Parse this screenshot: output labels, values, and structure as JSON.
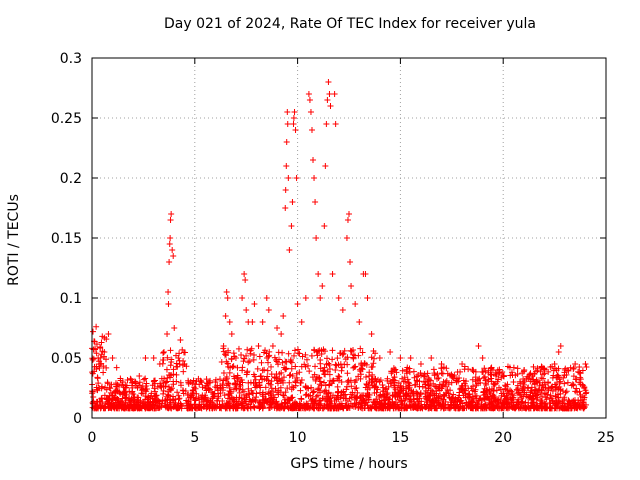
{
  "chart_data": {
    "type": "scatter",
    "title": "Day 021 of 2024, Rate Of TEC Index for receiver yula",
    "xlabel": "GPS time / hours",
    "ylabel": "ROTI / TECUs",
    "xlim": [
      0,
      25
    ],
    "ylim": [
      0,
      0.3
    ],
    "xticks": [
      0,
      5,
      10,
      15,
      20,
      25
    ],
    "yticks": [
      0,
      0.05,
      0.1,
      0.15,
      0.2,
      0.25,
      0.3
    ],
    "grid": true,
    "marker": "+",
    "color": "#ff0000",
    "series": [
      {
        "points": [
          [
            0.05,
            0.072
          ],
          [
            0.1,
            0.064
          ],
          [
            0.15,
            0.058
          ],
          [
            0.2,
            0.076
          ],
          [
            0.3,
            0.05
          ],
          [
            0.4,
            0.045
          ],
          [
            0.5,
            0.068
          ],
          [
            0.6,
            0.055
          ],
          [
            0.8,
            0.07
          ],
          [
            1.0,
            0.05
          ],
          [
            1.2,
            0.042
          ],
          [
            1.5,
            0.03
          ],
          [
            1.9,
            0.032
          ],
          [
            2.3,
            0.035
          ],
          [
            2.6,
            0.05
          ],
          [
            3.0,
            0.05
          ],
          [
            3.3,
            0.045
          ],
          [
            3.5,
            0.055
          ],
          [
            3.65,
            0.07
          ],
          [
            3.7,
            0.105
          ],
          [
            3.72,
            0.095
          ],
          [
            3.75,
            0.13
          ],
          [
            3.78,
            0.145
          ],
          [
            3.8,
            0.15
          ],
          [
            3.82,
            0.165
          ],
          [
            3.85,
            0.17
          ],
          [
            3.9,
            0.14
          ],
          [
            3.95,
            0.135
          ],
          [
            4.0,
            0.075
          ],
          [
            4.2,
            0.05
          ],
          [
            4.3,
            0.065
          ],
          [
            4.5,
            0.045
          ],
          [
            4.8,
            0.03
          ],
          [
            5.5,
            0.025
          ],
          [
            6.0,
            0.03
          ],
          [
            6.4,
            0.06
          ],
          [
            6.5,
            0.085
          ],
          [
            6.55,
            0.105
          ],
          [
            6.6,
            0.1
          ],
          [
            6.7,
            0.08
          ],
          [
            6.8,
            0.07
          ],
          [
            7.0,
            0.05
          ],
          [
            7.3,
            0.1
          ],
          [
            7.4,
            0.12
          ],
          [
            7.45,
            0.115
          ],
          [
            7.5,
            0.09
          ],
          [
            7.6,
            0.08
          ],
          [
            7.8,
            0.08
          ],
          [
            7.9,
            0.095
          ],
          [
            8.1,
            0.06
          ],
          [
            8.3,
            0.08
          ],
          [
            8.5,
            0.1
          ],
          [
            8.6,
            0.09
          ],
          [
            8.8,
            0.06
          ],
          [
            9.0,
            0.075
          ],
          [
            9.2,
            0.07
          ],
          [
            9.3,
            0.085
          ],
          [
            9.4,
            0.175
          ],
          [
            9.42,
            0.19
          ],
          [
            9.45,
            0.21
          ],
          [
            9.47,
            0.23
          ],
          [
            9.5,
            0.255
          ],
          [
            9.52,
            0.245
          ],
          [
            9.55,
            0.2
          ],
          [
            9.6,
            0.14
          ],
          [
            9.7,
            0.16
          ],
          [
            9.75,
            0.18
          ],
          [
            9.8,
            0.245
          ],
          [
            9.82,
            0.25
          ],
          [
            9.85,
            0.255
          ],
          [
            9.9,
            0.24
          ],
          [
            9.95,
            0.2
          ],
          [
            10.0,
            0.095
          ],
          [
            10.2,
            0.08
          ],
          [
            10.4,
            0.1
          ],
          [
            10.55,
            0.27
          ],
          [
            10.6,
            0.265
          ],
          [
            10.65,
            0.255
          ],
          [
            10.7,
            0.24
          ],
          [
            10.75,
            0.215
          ],
          [
            10.8,
            0.2
          ],
          [
            10.85,
            0.18
          ],
          [
            10.9,
            0.15
          ],
          [
            11.0,
            0.12
          ],
          [
            11.1,
            0.1
          ],
          [
            11.2,
            0.11
          ],
          [
            11.3,
            0.16
          ],
          [
            11.35,
            0.21
          ],
          [
            11.4,
            0.245
          ],
          [
            11.45,
            0.265
          ],
          [
            11.5,
            0.28
          ],
          [
            11.55,
            0.27
          ],
          [
            11.6,
            0.26
          ],
          [
            11.7,
            0.12
          ],
          [
            11.8,
            0.27
          ],
          [
            11.85,
            0.245
          ],
          [
            12.0,
            0.1
          ],
          [
            12.2,
            0.09
          ],
          [
            12.4,
            0.15
          ],
          [
            12.45,
            0.165
          ],
          [
            12.5,
            0.17
          ],
          [
            12.55,
            0.13
          ],
          [
            12.6,
            0.11
          ],
          [
            12.8,
            0.095
          ],
          [
            13.0,
            0.08
          ],
          [
            13.2,
            0.12
          ],
          [
            13.3,
            0.12
          ],
          [
            13.4,
            0.1
          ],
          [
            13.6,
            0.07
          ],
          [
            14.0,
            0.05
          ],
          [
            14.5,
            0.055
          ],
          [
            15.0,
            0.05
          ],
          [
            15.5,
            0.05
          ],
          [
            16.0,
            0.045
          ],
          [
            16.5,
            0.05
          ],
          [
            17.0,
            0.045
          ],
          [
            17.5,
            0.035
          ],
          [
            18.0,
            0.045
          ],
          [
            18.5,
            0.04
          ],
          [
            18.8,
            0.06
          ],
          [
            19.0,
            0.05
          ],
          [
            19.5,
            0.04
          ],
          [
            20.0,
            0.035
          ],
          [
            20.5,
            0.03
          ],
          [
            21.0,
            0.025
          ],
          [
            21.5,
            0.03
          ],
          [
            22.0,
            0.04
          ],
          [
            22.5,
            0.045
          ],
          [
            22.7,
            0.055
          ],
          [
            22.8,
            0.06
          ],
          [
            23.0,
            0.04
          ],
          [
            23.5,
            0.045
          ],
          [
            24.0,
            0.045
          ]
        ]
      }
    ]
  }
}
